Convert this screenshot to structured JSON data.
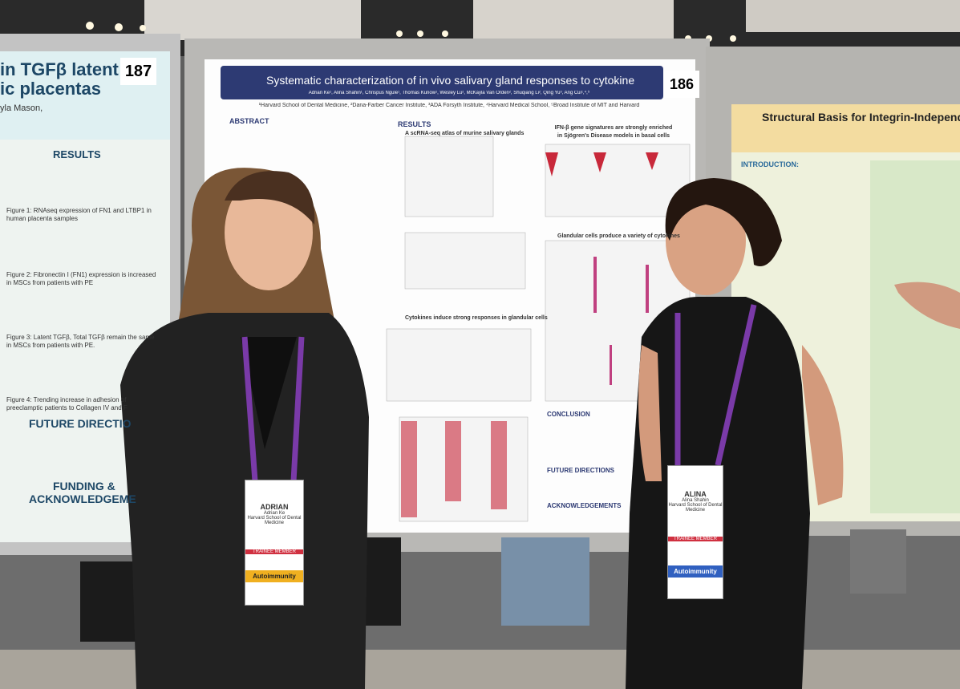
{
  "posters": [
    {
      "number": "187",
      "title_lines": [
        "in TGFβ latent",
        "ic placentas"
      ],
      "author_fragment": "yla Mason,",
      "sections": [
        "RESULTS",
        "FUTURE DIRECTIO",
        "FUNDING &",
        "ACKNOWLEDGEME"
      ],
      "figure_captions": [
        "Figure 1: RNAseq expression of FN1 and LTBP1 in human placenta samples",
        "Figure 2: Fibronectin I (FN1) expression is increased in MSCs from patients with PE",
        "Figure 3: Latent TGFβ, Total TGFβ remain the same in MSCs from patients with PE.",
        "Figure 4: Trending increase in adhesion of preeclamptic patients to Collagen IV and F"
      ]
    },
    {
      "number": "186",
      "title": "Systematic characterization of in vivo salivary gland responses to cytokine",
      "authors": "Adrian Ke¹, Alina Shahin¹, Chrispus Ngule¹, Thomas Kunow¹, Wesley Lu², McKayla Van Orden², Shuqiang Li², Qing Yu³, Ang Cui¹,⁴,⁵",
      "affiliations": "¹Harvard School of Dental Medicine, ²Dana-Farber Cancer Institute, ³ADA Forsyth Institute, ⁴Harvard Medical School, ⁵Broad Institute of MIT and Harvard",
      "sections": [
        "ABSTRACT",
        "RESULTS",
        "CONCLUSION",
        "FUTURE DIRECTIONS",
        "ACKNOWLEDGEMENTS"
      ],
      "subheads": [
        "A scRNA-seq atlas of murine salivary glands",
        "IFN-β gene signatures are strongly enriched in Sjögren's Disease models in basal cells",
        "Glandular cells produce a variety of cytokines",
        "Cytokines induce strong responses in glandular cells"
      ]
    },
    {
      "title": "Structural Basis for Integrin-Independe",
      "sections": [
        "INTRODUCTION:"
      ]
    }
  ],
  "badges": [
    {
      "first_name": "ADRIAN",
      "full_name": "Adrian Ke",
      "affiliation": "Harvard School of Dental Medicine",
      "ribbon": "TRAINEE MEMBER",
      "topic": "Autoimmunity"
    },
    {
      "first_name": "ALINA",
      "full_name": "Alina Shahin",
      "affiliation": "Harvard School of Dental Medicine",
      "ribbon": "TRAINEE MEMBER",
      "topic": "Autoimmunity"
    }
  ]
}
